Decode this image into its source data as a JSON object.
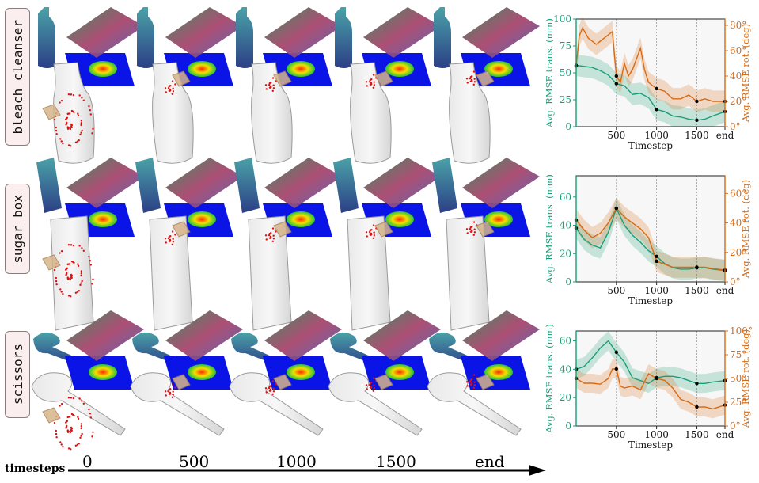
{
  "rows": [
    {
      "label": "bleach_cleanser"
    },
    {
      "label": "sugar_box"
    },
    {
      "label": "scissors"
    }
  ],
  "timeline": {
    "title": "timesteps",
    "labels": [
      "0",
      "500",
      "1000",
      "1500",
      "end"
    ]
  },
  "colors": {
    "trans": "#1a9e77",
    "rot": "#d96a12"
  },
  "chart_data": [
    {
      "type": "line",
      "xlabel": "Timestep",
      "ylabel_left": "Avg. RMSE trans. (mm)",
      "ylabel_right": "Avg. RMSE rot. (deg)",
      "xlim": [
        0,
        1850
      ],
      "ylim_left": [
        0,
        100
      ],
      "ylim_right": [
        0,
        85
      ],
      "xticks": [
        "500",
        "1000",
        "1500",
        "end"
      ],
      "xtick_values": [
        500,
        1000,
        1500,
        1850
      ],
      "yticks_left": [
        "0",
        "25",
        "50",
        "75",
        "100"
      ],
      "yticks_right": [
        "0°",
        "20°",
        "40°",
        "60°",
        "80°"
      ],
      "series": [
        {
          "x": [
            0,
            100,
            200,
            300,
            400,
            500,
            600,
            700,
            800,
            900,
            1000,
            1100,
            1200,
            1300,
            1400,
            1500,
            1600,
            1700,
            1850
          ],
          "values": [
            57,
            56,
            55,
            52,
            48,
            40,
            38,
            30,
            31,
            27,
            16,
            14,
            10,
            9,
            7,
            6,
            7,
            10,
            14
          ]
        },
        {
          "x": [
            0,
            40,
            80,
            150,
            250,
            350,
            450,
            500,
            550,
            600,
            650,
            700,
            800,
            850,
            900,
            1000,
            1100,
            1200,
            1300,
            1400,
            1500,
            1600,
            1700,
            1850
          ],
          "values": [
            48,
            72,
            78,
            70,
            65,
            70,
            75,
            40,
            35,
            50,
            40,
            45,
            62,
            45,
            35,
            30,
            28,
            22,
            22,
            25,
            20,
            22,
            20,
            20
          ]
        }
      ]
    },
    {
      "type": "line",
      "xlabel": "Timestep",
      "ylabel_left": "Avg. RMSE trans. (mm)",
      "ylabel_right": "Avg. RMSE rot. (deg)",
      "xlim": [
        0,
        1850
      ],
      "ylim_left": [
        0,
        75
      ],
      "ylim_right": [
        0,
        72
      ],
      "xticks": [
        "500",
        "1000",
        "1500",
        "end"
      ],
      "xtick_values": [
        500,
        1000,
        1500,
        1850
      ],
      "yticks_left": [
        "0",
        "20",
        "40",
        "60"
      ],
      "yticks_right": [
        "0°",
        "20°",
        "40°",
        "60°"
      ],
      "series": [
        {
          "x": [
            0,
            100,
            200,
            300,
            400,
            500,
            600,
            700,
            800,
            900,
            1000,
            1100,
            1200,
            1300,
            1400,
            1500,
            1600,
            1700,
            1850
          ],
          "values": [
            38,
            30,
            26,
            24,
            35,
            52,
            40,
            33,
            28,
            22,
            18,
            13,
            10,
            9,
            9,
            10,
            10,
            9,
            8
          ]
        },
        {
          "x": [
            0,
            100,
            200,
            300,
            400,
            500,
            600,
            700,
            800,
            900,
            1000,
            1100,
            1200,
            1300,
            1400,
            1500,
            1600,
            1700,
            1850
          ],
          "values": [
            42,
            35,
            30,
            33,
            40,
            50,
            44,
            40,
            36,
            30,
            14,
            12,
            10,
            10,
            10,
            10,
            10,
            9,
            8
          ]
        }
      ]
    },
    {
      "type": "line",
      "xlabel": "Timestep",
      "ylabel_left": "Avg. RMSE trans. (mm)",
      "ylabel_right": "Avg. RMSE rot. (deg)",
      "xlim": [
        0,
        1850
      ],
      "ylim_left": [
        0,
        67
      ],
      "ylim_right": [
        0,
        100
      ],
      "xticks": [
        "500",
        "1000",
        "1500",
        "end"
      ],
      "xtick_values": [
        500,
        1000,
        1500,
        1850
      ],
      "yticks_left": [
        "0",
        "20",
        "40",
        "60"
      ],
      "yticks_right": [
        "0°",
        "25°",
        "50°",
        "75°",
        "100°"
      ],
      "series": [
        {
          "x": [
            0,
            100,
            200,
            300,
            400,
            500,
            600,
            700,
            800,
            900,
            1000,
            1100,
            1200,
            1300,
            1400,
            1500,
            1600,
            1700,
            1850
          ],
          "values": [
            40,
            42,
            48,
            55,
            60,
            52,
            45,
            34,
            32,
            30,
            34,
            35,
            35,
            34,
            32,
            30,
            30,
            31,
            32
          ]
        },
        {
          "x": [
            0,
            100,
            200,
            300,
            400,
            450,
            500,
            550,
            600,
            700,
            800,
            900,
            1000,
            1100,
            1200,
            1300,
            1400,
            1500,
            1600,
            1700,
            1850
          ],
          "values": [
            50,
            45,
            45,
            44,
            50,
            60,
            60,
            42,
            40,
            42,
            38,
            55,
            50,
            48,
            40,
            28,
            25,
            20,
            20,
            18,
            22
          ]
        }
      ]
    }
  ]
}
